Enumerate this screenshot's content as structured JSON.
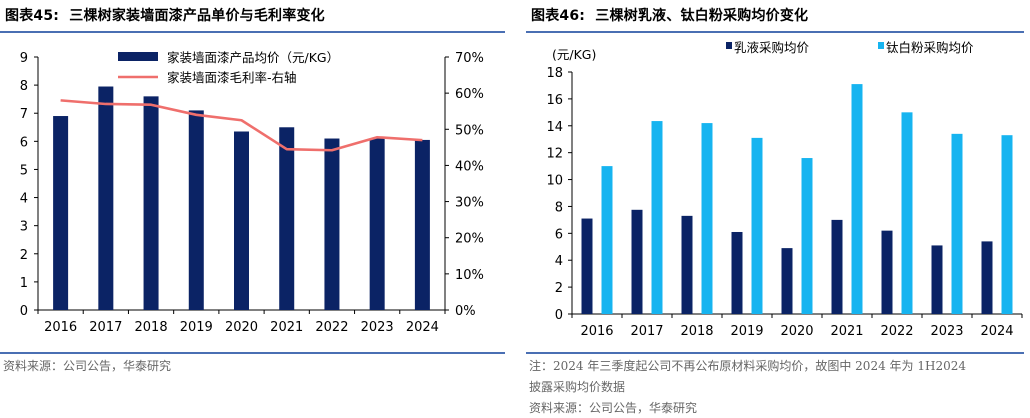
{
  "left": {
    "title_prefix": "图表45:",
    "title_text": "三棵树家装墙面漆产品单价与毛利率变化",
    "source": "资料来源：公司公告，华泰研究"
  },
  "right": {
    "title_prefix": "图表46:",
    "title_text": "三棵树乳液、钛白粉采购均价变化",
    "note_line1": "注：2024 年三季度起公司不再公布原材料采购均价，故图中 2024 年为 1H2024",
    "note_line2": "披露采购均价数据",
    "source": "资料来源：公司公告，华泰研究"
  },
  "colors": {
    "navy": "#0b2365",
    "red": "#ef6f6c",
    "sky": "#16b4f0",
    "rule": "#4a6fb3",
    "grid": "#d9d9d9"
  },
  "chart_data": [
    {
      "type": "bar",
      "title": "三棵树家装墙面漆产品单价与毛利率变化",
      "categories": [
        "2016",
        "2017",
        "2018",
        "2019",
        "2020",
        "2021",
        "2022",
        "2023",
        "2024"
      ],
      "series": [
        {
          "name": "家装墙面漆产品均价（元/KG）",
          "type": "bar",
          "axis": "left",
          "values": [
            6.9,
            7.95,
            7.6,
            7.1,
            6.35,
            6.5,
            6.1,
            6.1,
            6.05
          ]
        },
        {
          "name": "家装墙面漆毛利率-右轴",
          "type": "line",
          "axis": "right",
          "values": [
            58,
            57,
            56.8,
            54,
            52.5,
            44.5,
            44.2,
            47.8,
            47
          ]
        }
      ],
      "ylim": [
        0,
        9
      ],
      "yticks": [
        "0",
        "1",
        "2",
        "3",
        "4",
        "5",
        "6",
        "7",
        "8",
        "9"
      ],
      "y2lim": [
        0,
        70
      ],
      "y2ticks": [
        "0%",
        "10%",
        "20%",
        "30%",
        "40%",
        "50%",
        "60%",
        "70%"
      ],
      "grid": false,
      "legend": "top-center"
    },
    {
      "type": "bar",
      "title": "三棵树乳液、钛白粉采购均价变化",
      "ylabel": "(元/KG)",
      "categories": [
        "2016",
        "2017",
        "2018",
        "2019",
        "2020",
        "2021",
        "2022",
        "2023",
        "2024"
      ],
      "series": [
        {
          "name": "乳液采购均价",
          "values": [
            7.1,
            7.75,
            7.3,
            6.1,
            4.9,
            7.0,
            6.2,
            5.1,
            5.4
          ]
        },
        {
          "name": "钛白粉采购均价",
          "values": [
            11.0,
            14.35,
            14.2,
            13.1,
            11.6,
            17.1,
            15.0,
            13.4,
            13.3
          ]
        }
      ],
      "ylim": [
        0,
        18
      ],
      "yticks": [
        "0",
        "2",
        "4",
        "6",
        "8",
        "10",
        "12",
        "14",
        "16",
        "18"
      ],
      "grid": false,
      "legend": "top"
    }
  ]
}
